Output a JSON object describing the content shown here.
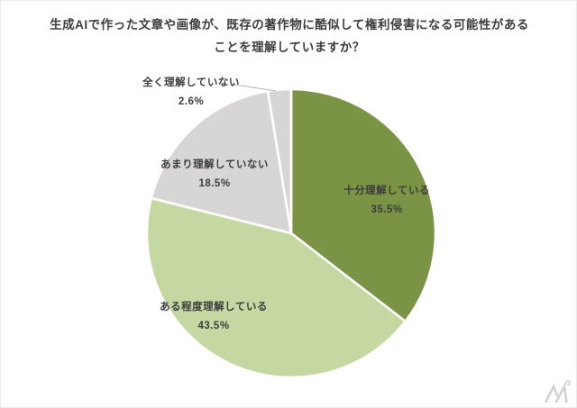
{
  "title": {
    "line1": "生成AIで作った文章や画像が、既存の著作物に酷似して権利侵害になる可能性がある",
    "line2": "ことを理解していますか？"
  },
  "chart_data": {
    "type": "pie",
    "title": "生成AIで作った文章や画像が、既存の著作物に酷似して権利侵害になる可能性があることを理解していますか？",
    "unit": "%",
    "direction": "clockwise",
    "start_angle": "top",
    "legend": "none",
    "slice_border_color": "#FFFFFF",
    "slices": [
      {
        "label": "十分理解している",
        "value": 35.5,
        "value_text": "35.5%",
        "color": "#7B9345",
        "label_placement": "inside"
      },
      {
        "label": "ある程度理解している",
        "value": 43.5,
        "value_text": "43.5%",
        "color": "#C6D8A2",
        "label_placement": "inside"
      },
      {
        "label": "あまり理解していない",
        "value": 18.5,
        "value_text": "18.5%",
        "color": "#D7D6D5",
        "label_placement": "inside"
      },
      {
        "label": "全く理解していない",
        "value": 2.6,
        "value_text": "2.6%",
        "color": "#D7D6D5",
        "label_placement": "outside",
        "leader_line": true
      }
    ]
  },
  "watermark": {
    "icon": "stylized-M-with-dot-logo"
  }
}
